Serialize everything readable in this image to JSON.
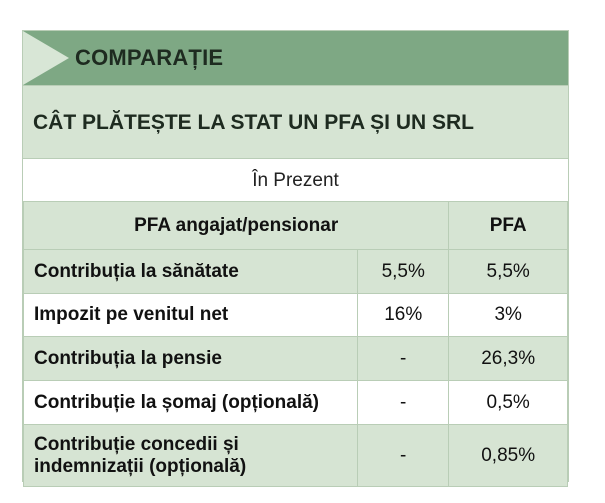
{
  "banner": {
    "title": "COMPARAȚIE"
  },
  "subtitle": "CÂT PLĂTEȘTE LA STAT UN PFA ȘI UN SRL",
  "section": "În Prezent",
  "table": {
    "headers": [
      "PFA angajat/pensionar",
      "PFA"
    ],
    "rows": [
      {
        "label": "Contribuția la sănătate",
        "col1": "5,5%",
        "col2": "5,5%"
      },
      {
        "label": "Impozit pe venitul net",
        "col1": "16%",
        "col2": "3%"
      },
      {
        "label": "Contribuția la pensie",
        "col1": "-",
        "col2": "26,3%"
      },
      {
        "label": "Contribuție la șomaj (opțională)",
        "col1": "-",
        "col2": "0,5%"
      },
      {
        "label": "Contribuție concedii și\nindemnizații (opțională)",
        "col1": "-",
        "col2": "0,85%"
      }
    ]
  }
}
